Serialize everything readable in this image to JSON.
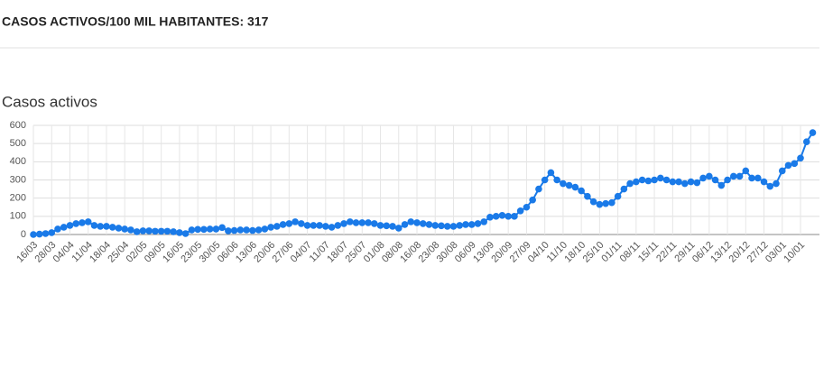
{
  "header": {
    "title": "CASOS ACTIVOS/100 MIL HABITANTES: 317"
  },
  "chart_data": {
    "type": "line",
    "title": "Casos activos",
    "categories": [
      "16/03",
      null,
      null,
      "28/03",
      null,
      null,
      "04/04",
      null,
      null,
      "11/04",
      null,
      null,
      "18/04",
      null,
      null,
      "25/04",
      null,
      null,
      "02/05",
      null,
      null,
      "09/05",
      null,
      null,
      "16/05",
      null,
      null,
      "23/05",
      null,
      null,
      "30/05",
      null,
      null,
      "06/06",
      null,
      null,
      "13/06",
      null,
      null,
      "20/06",
      null,
      null,
      "27/06",
      null,
      null,
      "04/07",
      null,
      null,
      "11/07",
      null,
      null,
      "18/07",
      null,
      null,
      "25/07",
      null,
      null,
      "01/08",
      null,
      null,
      "08/08",
      null,
      null,
      "16/08",
      null,
      null,
      "23/08",
      null,
      null,
      "30/08",
      null,
      null,
      "06/09",
      null,
      null,
      "13/09",
      null,
      null,
      "20/09",
      null,
      null,
      "27/09",
      null,
      null,
      "04/10",
      null,
      null,
      "11/10",
      null,
      null,
      "18/10",
      null,
      null,
      "25/10",
      null,
      null,
      "01/11",
      null,
      null,
      "08/11",
      null,
      null,
      "15/11",
      null,
      null,
      "22/11",
      null,
      null,
      "29/11",
      null,
      null,
      "06/12",
      null,
      null,
      "13/12",
      null,
      null,
      "20/12",
      null,
      null,
      "27/12",
      null,
      null,
      "03/01",
      null,
      null,
      "10/01",
      null,
      null
    ],
    "values": [
      0,
      2,
      5,
      10,
      30,
      40,
      50,
      60,
      65,
      70,
      50,
      45,
      45,
      40,
      35,
      30,
      25,
      15,
      20,
      20,
      18,
      18,
      18,
      15,
      10,
      5,
      25,
      28,
      28,
      30,
      30,
      38,
      20,
      22,
      25,
      25,
      22,
      25,
      30,
      40,
      45,
      55,
      60,
      70,
      60,
      50,
      50,
      50,
      45,
      40,
      50,
      60,
      70,
      65,
      65,
      65,
      60,
      50,
      48,
      45,
      35,
      55,
      70,
      65,
      60,
      55,
      50,
      48,
      45,
      45,
      50,
      55,
      55,
      60,
      70,
      95,
      100,
      105,
      100,
      100,
      130,
      150,
      190,
      250,
      300,
      340,
      300,
      280,
      270,
      260,
      240,
      210,
      180,
      165,
      170,
      175,
      210,
      250,
      280,
      290,
      300,
      295,
      300,
      310,
      300,
      290,
      290,
      280,
      290,
      285,
      310,
      320,
      300,
      270,
      300,
      320,
      320,
      350,
      310,
      310,
      290,
      265,
      280,
      350,
      380,
      390,
      420,
      510,
      560
    ],
    "color": "#1a7ae8",
    "ylim": [
      0,
      600
    ],
    "yticks": [
      0,
      100,
      200,
      300,
      400,
      500,
      600
    ],
    "grid": true
  }
}
